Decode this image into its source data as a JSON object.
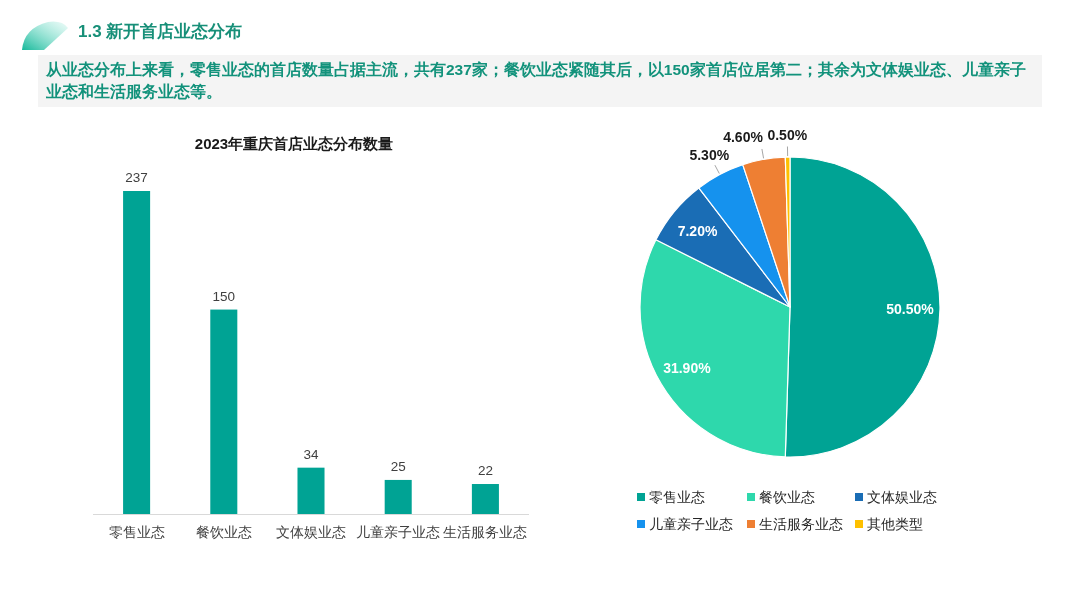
{
  "chart_data": [
    {
      "type": "other",
      "title": "1.3 新开首店业态分布",
      "subtitle": "从业态分布上来看，零售业态的首店数量占据主流，共有237家；餐饮业态紧随其后，以150家首店位居第二；其余为文体娱业态、儿童亲子业态和生活服务业态等。"
    },
    {
      "type": "bar",
      "title": "2023年重庆首店业态分布数量",
      "categories": [
        "零售业态",
        "餐饮业态",
        "文体娱业态",
        "儿童亲子业态",
        "生活服务业态"
      ],
      "values": [
        237,
        150,
        34,
        25,
        22
      ],
      "color": "#00a394",
      "data_labels": true
    },
    {
      "type": "pie",
      "categories": [
        "零售业态",
        "餐饮业态",
        "文体娱业态",
        "儿童亲子业态",
        "生活服务业态",
        "其他类型"
      ],
      "values": [
        50.5,
        31.9,
        7.2,
        5.3,
        4.6,
        0.5
      ],
      "colors": [
        "#00a394",
        "#2ed8ac",
        "#1a6db5",
        "#1592ee",
        "#ee7f33",
        "#fec000"
      ],
      "value_labels": [
        "50.50%",
        "31.90%",
        "7.20%",
        "5.30%",
        "4.60%",
        "0.50%"
      ],
      "legend": "bottom"
    }
  ]
}
